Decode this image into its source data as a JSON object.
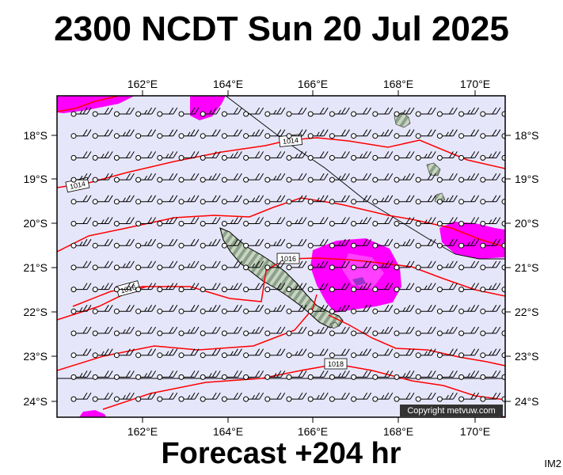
{
  "header": {
    "title": "2300 NCDT Sun 20 Jul 2025"
  },
  "footer": {
    "forecast_label": "Forecast +204 hr",
    "product_code": "IM2"
  },
  "map": {
    "copyright": "Copyright metvuw.com",
    "lon_ticks": [
      "162°E",
      "164°E",
      "166°E",
      "168°E",
      "170°E"
    ],
    "lat_ticks": [
      "18°S",
      "19°S",
      "20°S",
      "21°S",
      "22°S",
      "23°S",
      "24°S"
    ],
    "isobar_labels": [
      "1014",
      "1014",
      "1016",
      "1016",
      "1018"
    ],
    "colors": {
      "ocean": "#e6e6fa",
      "rain_heavy": "#ff00ff",
      "rain_light": "#ff99ff",
      "rain_core": "#9933cc",
      "isobar": "#ff0000",
      "land": "#c8d4c0",
      "land_hatch": "#8aa08a"
    }
  }
}
